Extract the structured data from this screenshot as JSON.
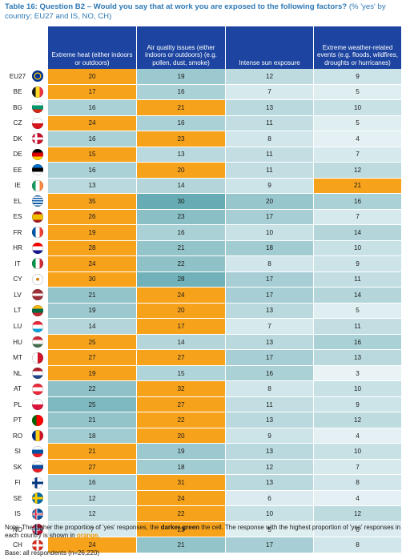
{
  "caption": {
    "bold": "Table 16: Question B2 – Would you say that at work you are exposed to the following factors?",
    "rest": " (% 'yes' by country; EU27 and IS, NO, CH)"
  },
  "columns": [
    "Extreme heat (either indoors or outdoors)",
    "Air quality issues (either indoors or outdoors) (e.g. pollen, dust, smoke)",
    "Intense sun exposure",
    "Extreme weather-related events (e.g. floods, wildfires, droughts or hurricanes)"
  ],
  "colors": {
    "orange": "#f7a21b",
    "scale_light": "#e9f3f6",
    "scale_dark": "#4f9fa8",
    "header_blue": "#1c44a0",
    "caption_blue": "#2d78b5"
  },
  "rows": [
    {
      "country": "EU27",
      "flag_icon": "eu-flag-icon",
      "values": [
        20,
        19,
        12,
        9
      ],
      "max": 0
    },
    {
      "country": "BE",
      "flag_icon": "belgium-flag-icon",
      "values": [
        17,
        16,
        7,
        5
      ],
      "max": 0
    },
    {
      "country": "BG",
      "flag_icon": "bulgaria-flag-icon",
      "values": [
        16,
        21,
        13,
        10
      ],
      "max": 1
    },
    {
      "country": "CZ",
      "flag_icon": "czechia-flag-icon",
      "values": [
        24,
        16,
        11,
        5
      ],
      "max": 0
    },
    {
      "country": "DK",
      "flag_icon": "denmark-flag-icon",
      "values": [
        16,
        23,
        8,
        4
      ],
      "max": 1
    },
    {
      "country": "DE",
      "flag_icon": "germany-flag-icon",
      "values": [
        15,
        13,
        11,
        7
      ],
      "max": 0
    },
    {
      "country": "EE",
      "flag_icon": "estonia-flag-icon",
      "values": [
        16,
        20,
        11,
        12
      ],
      "max": 1
    },
    {
      "country": "IE",
      "flag_icon": "ireland-flag-icon",
      "values": [
        13,
        14,
        9,
        21
      ],
      "max": 3
    },
    {
      "country": "EL",
      "flag_icon": "greece-flag-icon",
      "values": [
        35,
        30,
        20,
        16
      ],
      "max": 0
    },
    {
      "country": "ES",
      "flag_icon": "spain-flag-icon",
      "values": [
        26,
        23,
        17,
        7
      ],
      "max": 0
    },
    {
      "country": "FR",
      "flag_icon": "france-flag-icon",
      "values": [
        19,
        16,
        10,
        14
      ],
      "max": 0
    },
    {
      "country": "HR",
      "flag_icon": "croatia-flag-icon",
      "values": [
        28,
        21,
        18,
        10
      ],
      "max": 0
    },
    {
      "country": "IT",
      "flag_icon": "italy-flag-icon",
      "values": [
        24,
        22,
        8,
        9
      ],
      "max": 0
    },
    {
      "country": "CY",
      "flag_icon": "cyprus-flag-icon",
      "values": [
        30,
        28,
        17,
        11
      ],
      "max": 0
    },
    {
      "country": "LV",
      "flag_icon": "latvia-flag-icon",
      "values": [
        21,
        24,
        17,
        14
      ],
      "max": 1
    },
    {
      "country": "LT",
      "flag_icon": "lithuania-flag-icon",
      "values": [
        19,
        20,
        13,
        5
      ],
      "max": 1
    },
    {
      "country": "LU",
      "flag_icon": "luxembourg-flag-icon",
      "values": [
        14,
        17,
        7,
        11
      ],
      "max": 1
    },
    {
      "country": "HU",
      "flag_icon": "hungary-flag-icon",
      "values": [
        25,
        14,
        13,
        16
      ],
      "max": 0
    },
    {
      "country": "MT",
      "flag_icon": "malta-flag-icon",
      "values": [
        27,
        27,
        17,
        13
      ],
      "max": [
        0,
        1
      ]
    },
    {
      "country": "NL",
      "flag_icon": "netherlands-flag-icon",
      "values": [
        19,
        15,
        16,
        3
      ],
      "max": 0
    },
    {
      "country": "AT",
      "flag_icon": "austria-flag-icon",
      "values": [
        22,
        32,
        8,
        10
      ],
      "max": 1
    },
    {
      "country": "PL",
      "flag_icon": "poland-flag-icon",
      "values": [
        25,
        27,
        11,
        9
      ],
      "max": 1
    },
    {
      "country": "PT",
      "flag_icon": "portugal-flag-icon",
      "values": [
        21,
        22,
        13,
        12
      ],
      "max": 1
    },
    {
      "country": "RO",
      "flag_icon": "romania-flag-icon",
      "values": [
        18,
        20,
        9,
        4
      ],
      "max": 1
    },
    {
      "country": "SI",
      "flag_icon": "slovenia-flag-icon",
      "values": [
        21,
        19,
        13,
        10
      ],
      "max": 0
    },
    {
      "country": "SK",
      "flag_icon": "slovakia-flag-icon",
      "values": [
        27,
        18,
        12,
        7
      ],
      "max": 0
    },
    {
      "country": "FI",
      "flag_icon": "finland-flag-icon",
      "values": [
        16,
        31,
        13,
        8
      ],
      "max": 1
    },
    {
      "country": "SE",
      "flag_icon": "sweden-flag-icon",
      "values": [
        12,
        24,
        6,
        4
      ],
      "max": 1
    },
    {
      "country": "IS",
      "flag_icon": "iceland-flag-icon",
      "values": [
        12,
        22,
        10,
        12
      ],
      "max": 1
    },
    {
      "country": "NO",
      "flag_icon": "norway-flag-icon",
      "values": [
        7,
        23,
        5,
        6
      ],
      "max": 1
    },
    {
      "country": "CH",
      "flag_icon": "switzerland-flag-icon",
      "values": [
        24,
        21,
        17,
        8
      ],
      "max": 0
    }
  ],
  "note": {
    "text1": "Note: The higher the proportion of 'yes' responses, the ",
    "bold": "darker green",
    "text2": " the cell. The response with the highest proportion of 'yes' responses in each country is shown in ",
    "orange": "orange",
    "text3": "."
  },
  "base": "Base: all respondents (n=26,220)"
}
